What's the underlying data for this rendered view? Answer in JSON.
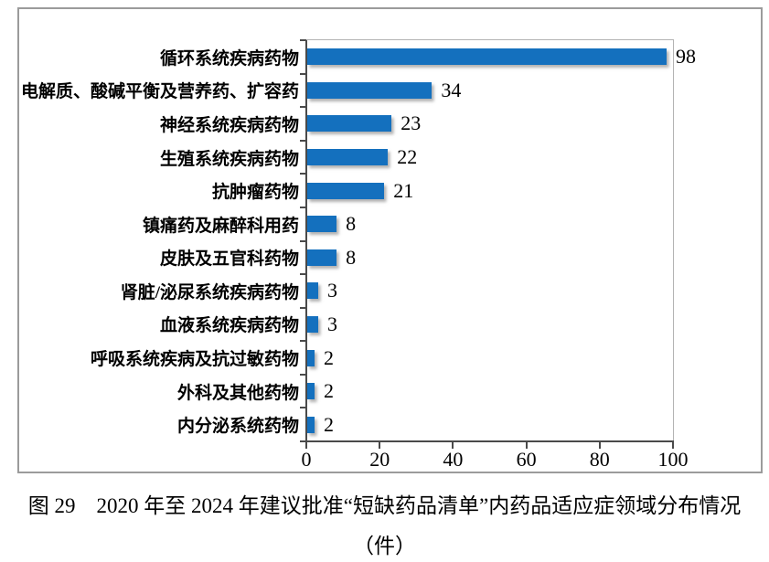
{
  "chart_data": {
    "type": "bar",
    "orientation": "horizontal",
    "categories": [
      "循环系统疾病药物",
      "电解质、酸碱平衡及营养药、扩容药",
      "神经系统疾病药物",
      "生殖系统疾病药物",
      "抗肿瘤药物",
      "镇痛药及麻醉科用药",
      "皮肤及五官科药物",
      "肾脏/泌尿系统疾病药物",
      "血液系统疾病药物",
      "呼吸系统疾病及抗过敏药物",
      "外科及其他药物",
      "内分泌系统药物"
    ],
    "values": [
      98,
      34,
      23,
      22,
      21,
      8,
      8,
      3,
      3,
      2,
      2,
      2
    ],
    "x_ticks": [
      0,
      20,
      40,
      60,
      80,
      100
    ],
    "xlim": [
      0,
      100
    ],
    "grid": false,
    "legend": false,
    "data_labels": true,
    "bar_color": "#1470BE",
    "axis_color": "#4a4a4a",
    "title": "",
    "xlabel": "",
    "ylabel": ""
  },
  "caption": {
    "line1": "图 29　2020 年至 2024 年建议批准“短缺药品清单”内药品适应症领域分布情况",
    "line2": "（件）"
  }
}
